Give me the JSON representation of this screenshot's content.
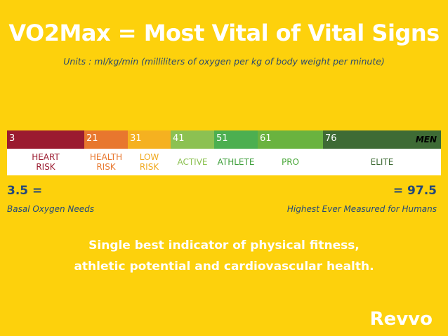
{
  "header": {
    "title": "VO2Max = Most Vital of Vital Signs",
    "subtitle": "Units : ml/kg/min (milliliters of oxygen per kg of body weight per minute)"
  },
  "scale": {
    "group": "MEN",
    "segments": [
      {
        "start": 3,
        "label": [
          "HEART",
          "RISK"
        ]
      },
      {
        "start": 21,
        "label": [
          "HEALTH",
          "RISK"
        ]
      },
      {
        "start": 31,
        "label": [
          "LOW",
          "RISK"
        ]
      },
      {
        "start": 41,
        "label": [
          "ACTIVE"
        ]
      },
      {
        "start": 51,
        "label": [
          "ATHLETE"
        ]
      },
      {
        "start": 61,
        "label": [
          "PRO"
        ]
      },
      {
        "start": 76,
        "label": [
          "ELITE"
        ]
      }
    ]
  },
  "range": {
    "low": {
      "value": "3.5 =",
      "note": "Basal Oxygen Needs"
    },
    "high": {
      "value": "= 97.5",
      "note": "Highest Ever Measured for Humans"
    }
  },
  "tagline": [
    "Single best indicator of physical fitness,",
    "athletic potential and cardiovascular health."
  ],
  "logo": "Revvo"
}
